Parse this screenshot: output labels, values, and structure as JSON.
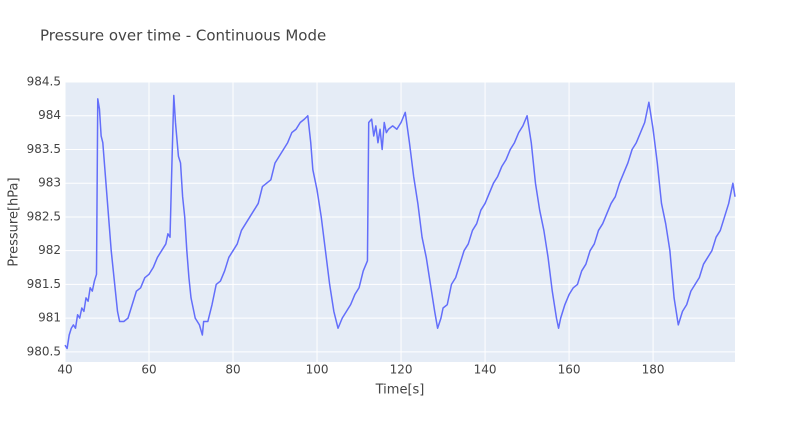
{
  "chart_data": {
    "type": "line",
    "title": "Pressure over time - Continuous Mode",
    "x_label": "Time[s]",
    "y_label": "Pressure[hPa]",
    "color": "#636efa",
    "grid": true,
    "xlim": [
      40,
      199.5
    ],
    "ylim": [
      980.35,
      984.5
    ],
    "xticks": [
      40,
      60,
      80,
      100,
      120,
      140,
      160,
      180
    ],
    "yticks": [
      980.5,
      981,
      981.5,
      982,
      982.5,
      983,
      983.5,
      984,
      984.5
    ],
    "x": [
      40,
      40.5,
      41,
      41.5,
      42,
      42.5,
      43,
      43.5,
      44,
      44.5,
      45,
      45.5,
      46,
      46.5,
      47,
      47.5,
      47.8,
      48.2,
      48.6,
      49,
      49.5,
      50,
      50.5,
      51,
      51.5,
      52,
      52.5,
      53,
      54,
      55,
      56,
      57,
      58,
      59,
      60,
      61,
      62,
      63,
      64,
      64.5,
      65,
      65.5,
      65.9,
      66.3,
      67,
      67.5,
      68,
      68.5,
      69,
      69.5,
      70,
      71,
      72,
      72.7,
      73,
      74,
      75,
      76,
      77,
      78,
      79,
      80,
      81,
      82,
      83,
      84,
      85,
      86,
      87,
      88,
      89,
      90,
      91,
      92,
      93,
      94,
      95,
      96,
      97,
      97.8,
      98.5,
      99,
      100,
      101,
      102,
      103,
      104,
      105,
      106,
      107,
      108,
      109,
      110,
      111,
      112,
      112.3,
      113,
      113.5,
      114,
      114.5,
      115,
      115.5,
      116,
      116.5,
      117,
      118,
      119,
      120,
      121,
      122,
      123,
      124,
      125,
      126,
      127,
      128,
      128.7,
      129.5,
      130,
      131,
      132,
      133,
      134,
      135,
      136,
      137,
      138,
      139,
      140,
      141,
      142,
      143,
      144,
      145,
      146,
      147,
      148,
      149,
      150,
      151,
      152,
      153,
      154,
      155,
      156,
      157,
      157.5,
      158,
      159,
      160,
      161,
      162,
      163,
      164,
      165,
      166,
      167,
      168,
      169,
      170,
      171,
      172,
      173,
      174,
      175,
      176,
      177,
      178,
      179,
      180,
      181,
      182,
      183,
      184,
      185,
      186,
      187,
      188,
      189,
      190,
      191,
      192,
      193,
      194,
      195,
      196,
      197,
      198,
      199,
      199.5
    ],
    "values": [
      980.6,
      980.55,
      980.75,
      980.85,
      980.9,
      980.85,
      981.05,
      981.0,
      981.15,
      981.1,
      981.3,
      981.25,
      981.45,
      981.4,
      981.55,
      981.65,
      984.25,
      984.1,
      983.7,
      983.6,
      983.2,
      982.8,
      982.4,
      982.0,
      981.7,
      981.4,
      981.1,
      980.95,
      980.95,
      981.0,
      981.2,
      981.4,
      981.45,
      981.6,
      981.65,
      981.75,
      981.9,
      982.0,
      982.1,
      982.25,
      982.2,
      983.4,
      984.3,
      983.9,
      983.4,
      983.3,
      982.8,
      982.5,
      982.0,
      981.6,
      981.3,
      981.0,
      980.9,
      980.75,
      980.95,
      980.95,
      981.2,
      981.5,
      981.55,
      981.7,
      981.9,
      982.0,
      982.1,
      982.3,
      982.4,
      982.5,
      982.6,
      982.7,
      982.95,
      983.0,
      983.05,
      983.3,
      983.4,
      983.5,
      983.6,
      983.75,
      983.8,
      983.9,
      983.95,
      984.0,
      983.6,
      983.2,
      982.9,
      982.5,
      982.0,
      981.5,
      981.1,
      980.85,
      981.0,
      981.1,
      981.2,
      981.35,
      981.45,
      981.7,
      981.85,
      983.9,
      983.95,
      983.7,
      983.85,
      983.6,
      983.8,
      983.5,
      983.9,
      983.75,
      983.8,
      983.85,
      983.8,
      983.9,
      984.05,
      983.6,
      983.1,
      982.7,
      982.2,
      981.9,
      981.5,
      981.1,
      980.85,
      981.0,
      981.15,
      981.2,
      981.5,
      981.6,
      981.8,
      982.0,
      982.1,
      982.3,
      982.4,
      982.6,
      982.7,
      982.85,
      983.0,
      983.1,
      983.25,
      983.35,
      983.5,
      983.6,
      983.75,
      983.85,
      984.0,
      983.6,
      983.0,
      982.6,
      982.3,
      981.9,
      981.4,
      981.0,
      980.85,
      981.0,
      981.2,
      981.35,
      981.45,
      981.5,
      981.7,
      981.8,
      982.0,
      982.1,
      982.3,
      982.4,
      982.55,
      982.7,
      982.8,
      983.0,
      983.15,
      983.3,
      983.5,
      983.6,
      983.75,
      983.9,
      984.2,
      983.8,
      983.3,
      982.7,
      982.4,
      982.0,
      981.3,
      980.9,
      981.1,
      981.2,
      981.4,
      981.5,
      981.6,
      981.8,
      981.9,
      982.0,
      982.2,
      982.3,
      982.5,
      982.7,
      983.0,
      982.8
    ]
  }
}
